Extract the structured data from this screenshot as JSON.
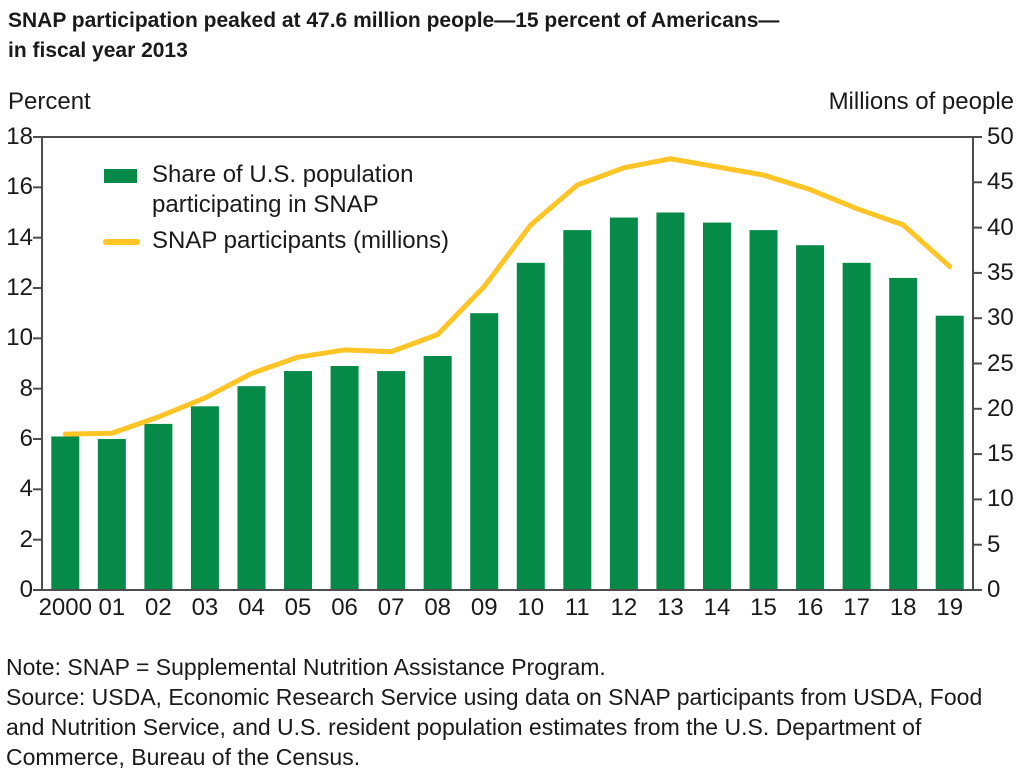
{
  "title": {
    "line1": "SNAP participation peaked at 47.6 million people—15 percent of Americans—",
    "line2": "in fiscal year 2013"
  },
  "legend": {
    "bars_label": "Share of U.S. population\nparticipating in SNAP",
    "line_label": "SNAP participants (millions)"
  },
  "notes": {
    "lines": [
      "Note: SNAP = Supplemental Nutrition Assistance Program.",
      "Source: USDA, Economic Research Service using data on SNAP participants from USDA, Food",
      "and Nutrition Service, and U.S. resident population estimates from the U.S. Department of",
      "Commerce, Bureau of the Census."
    ]
  },
  "colors": {
    "bar_green": "#068a48",
    "line_yellow": "#ffc425",
    "axis": "#4d4d4f",
    "text": "#1a1a1a"
  },
  "chart_data": {
    "type": "bar+line",
    "categories": [
      "2000",
      "01",
      "02",
      "03",
      "04",
      "05",
      "06",
      "07",
      "08",
      "09",
      "10",
      "11",
      "12",
      "13",
      "14",
      "15",
      "16",
      "17",
      "18",
      "19"
    ],
    "series": [
      {
        "name": "Share of U.S. population participating in SNAP",
        "type": "bar",
        "axis": "left",
        "unit": "percent",
        "values": [
          6.1,
          6.0,
          6.6,
          7.3,
          8.1,
          8.7,
          8.9,
          8.7,
          9.3,
          11.0,
          13.0,
          14.3,
          14.8,
          15.0,
          14.6,
          14.3,
          13.7,
          13.0,
          12.4,
          10.9
        ]
      },
      {
        "name": "SNAP participants (millions)",
        "type": "line",
        "axis": "right",
        "unit": "millions of people",
        "values": [
          17.2,
          17.3,
          19.1,
          21.2,
          23.9,
          25.7,
          26.5,
          26.3,
          28.2,
          33.5,
          40.3,
          44.7,
          46.6,
          47.6,
          46.7,
          45.8,
          44.2,
          42.1,
          40.3,
          35.7
        ]
      }
    ],
    "left_axis": {
      "label": "Percent",
      "min": 0,
      "max": 18,
      "tick_step": 2,
      "ticks": [
        0,
        2,
        4,
        6,
        8,
        10,
        12,
        14,
        16,
        18
      ]
    },
    "right_axis": {
      "label": "Millions of people",
      "min": 0,
      "max": 50,
      "tick_step": 5,
      "ticks": [
        0,
        5,
        10,
        15,
        20,
        25,
        30,
        35,
        40,
        45,
        50
      ]
    },
    "grid": false,
    "legend_position": "top-left inside plot"
  }
}
